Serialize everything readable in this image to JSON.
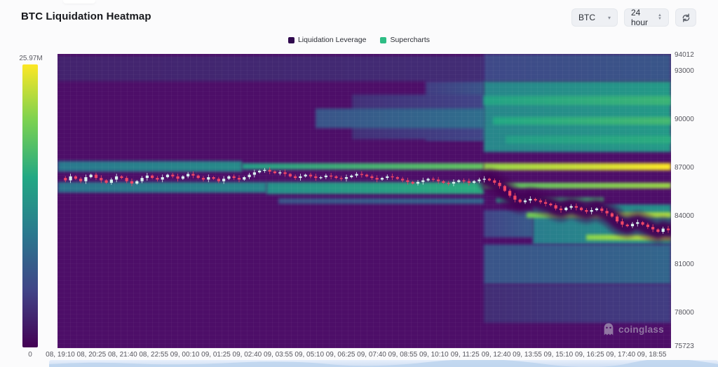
{
  "header": {
    "title": "BTC Liquidation Heatmap"
  },
  "controls": {
    "symbol": "BTC",
    "interval": "24 hour",
    "refresh_icon": "refresh-icon"
  },
  "legend": [
    {
      "label": "Liquidation Leverage",
      "color": "#30094e"
    },
    {
      "label": "Supercharts",
      "color": "#2ebd85"
    }
  ],
  "watermark": {
    "text": "coinglass"
  },
  "colors": {
    "heatmap_base": "#4d0e68",
    "candle_up": "#d9f3ef",
    "candle_down": "#ef4766",
    "pocket": "#440154"
  },
  "chart_data": {
    "type": "heatmap",
    "title": "BTC Liquidation Heatmap",
    "legend_position": "top-center",
    "grid": false,
    "colorbar": {
      "max_label": "25.97M",
      "min_label": "0",
      "colormap": "viridis",
      "scale": [
        {
          "t": 1.0,
          "c": "#fde725"
        },
        {
          "t": 0.8,
          "c": "#7ad151"
        },
        {
          "t": 0.6,
          "c": "#22a884"
        },
        {
          "t": 0.4,
          "c": "#2a788e"
        },
        {
          "t": 0.2,
          "c": "#414487"
        },
        {
          "t": 0.0,
          "c": "#440154"
        }
      ]
    },
    "y_axis": {
      "min": 75723,
      "max": 94012,
      "ticks": [
        94012,
        93000,
        90000,
        87000,
        84000,
        81000,
        78000,
        75723
      ]
    },
    "x_axis": {
      "ticks": [
        "08, 19:10",
        "08, 20:25",
        "08, 21:40",
        "08, 22:55",
        "09, 00:10",
        "09, 01:25",
        "09, 02:40",
        "09, 03:55",
        "09, 05:10",
        "09, 06:25",
        "09, 07:40",
        "09, 08:55",
        "09, 10:10",
        "09, 11:25",
        "09, 12:40",
        "09, 13:55",
        "09, 15:10",
        "09, 16:25",
        "09, 17:40",
        "09, 18:55"
      ]
    },
    "bands": [
      {
        "p1": 93900,
        "p2": 92300,
        "x0": 0.0,
        "x1": 0.695,
        "i0": 0.1,
        "i1": 0.13
      },
      {
        "p1": 94012,
        "p2": 92300,
        "x0": 0.695,
        "x1": 1.0,
        "i0": 0.22,
        "i1": 0.27
      },
      {
        "p1": 92300,
        "p2": 88600,
        "x0": 0.6,
        "x1": 0.695,
        "i0": 0.18,
        "i1": 0.26
      },
      {
        "p1": 91500,
        "p2": 88700,
        "x0": 0.48,
        "x1": 0.695,
        "i0": 0.14,
        "i1": 0.2
      },
      {
        "p1": 90600,
        "p2": 89400,
        "x0": 0.42,
        "x1": 0.695,
        "i0": 0.26,
        "i1": 0.36
      },
      {
        "p1": 92300,
        "p2": 87900,
        "x0": 0.695,
        "x1": 1.0,
        "i0": 0.46,
        "i1": 0.54
      },
      {
        "p1": 91400,
        "p2": 90850,
        "x0": 0.695,
        "x1": 1.0,
        "i0": 0.58,
        "i1": 0.66
      },
      {
        "p1": 90100,
        "p2": 89600,
        "x0": 0.71,
        "x1": 1.0,
        "i0": 0.6,
        "i1": 0.68
      },
      {
        "p1": 88900,
        "p2": 88450,
        "x0": 0.73,
        "x1": 1.0,
        "i0": 0.56,
        "i1": 0.62
      },
      {
        "p1": 87350,
        "p2": 86700,
        "x0": 0.0,
        "x1": 0.3,
        "i0": 0.4,
        "i1": 0.48
      },
      {
        "p1": 87200,
        "p2": 86820,
        "x0": 0.3,
        "x1": 0.695,
        "i0": 0.55,
        "i1": 0.75
      },
      {
        "p1": 87200,
        "p2": 86800,
        "x0": 0.695,
        "x1": 1.0,
        "i0": 0.84,
        "i1": 1.0
      },
      {
        "p1": 86050,
        "p2": 85400,
        "x0": 0.0,
        "x1": 0.34,
        "i0": 0.38,
        "i1": 0.46
      },
      {
        "p1": 86050,
        "p2": 85300,
        "x0": 0.34,
        "x1": 0.695,
        "i0": 0.5,
        "i1": 0.62
      },
      {
        "p1": 86020,
        "p2": 85650,
        "x0": 0.695,
        "x1": 1.0,
        "i0": 0.72,
        "i1": 0.85
      },
      {
        "p1": 85050,
        "p2": 84700,
        "x0": 0.36,
        "x1": 0.695,
        "i0": 0.26,
        "i1": 0.33
      },
      {
        "p1": 84300,
        "p2": 82600,
        "x0": 0.695,
        "x1": 0.775,
        "i0": 0.2,
        "i1": 0.28
      },
      {
        "p1": 84650,
        "p2": 82150,
        "x0": 0.775,
        "x1": 1.0,
        "i0": 0.42,
        "i1": 0.5
      },
      {
        "p1": 82150,
        "p2": 79700,
        "x0": 0.695,
        "x1": 1.0,
        "i0": 0.26,
        "i1": 0.33
      },
      {
        "p1": 79700,
        "p2": 77300,
        "x0": 0.695,
        "x1": 1.0,
        "i0": 0.13,
        "i1": 0.18
      },
      {
        "p1": 85080,
        "p2": 84760,
        "x0": 0.715,
        "x1": 0.89,
        "i0": 0.58,
        "i1": 0.68
      },
      {
        "p1": 84180,
        "p2": 83820,
        "x0": 0.765,
        "x1": 1.0,
        "i0": 0.78,
        "i1": 0.88
      },
      {
        "p1": 82800,
        "p2": 82420,
        "x0": 0.862,
        "x1": 1.0,
        "i0": 0.82,
        "i1": 0.92
      }
    ],
    "price_series": [
      86300,
      86150,
      86400,
      86250,
      86100,
      86350,
      86500,
      86300,
      86150,
      86000,
      86200,
      86400,
      86300,
      86100,
      85950,
      86100,
      86300,
      86450,
      86300,
      86200,
      86350,
      86500,
      86400,
      86250,
      86400,
      86550,
      86450,
      86300,
      86200,
      86350,
      86250,
      86100,
      86250,
      86400,
      86300,
      86200,
      86350,
      86500,
      86650,
      86750,
      86800,
      86700,
      86600,
      86650,
      86550,
      86400,
      86300,
      86400,
      86500,
      86400,
      86300,
      86350,
      86450,
      86400,
      86300,
      86250,
      86350,
      86450,
      86550,
      86500,
      86400,
      86300,
      86200,
      86300,
      86400,
      86350,
      86250,
      86150,
      86050,
      85950,
      86050,
      86150,
      86250,
      86200,
      86100,
      86000,
      85950,
      86050,
      86150,
      86100,
      86000,
      86100,
      86200,
      86250,
      86150,
      86000,
      85800,
      85500,
      85200,
      84950,
      84800,
      84900,
      85000,
      84900,
      84800,
      84700,
      84600,
      84400,
      84300,
      84450,
      84550,
      84450,
      84300,
      84200,
      84300,
      84400,
      84250,
      84100,
      83900,
      83600,
      83400,
      83300,
      83450,
      83550,
      83400,
      83250,
      83100,
      82950,
      83150,
      83050
    ],
    "decline_start_index": 84
  }
}
